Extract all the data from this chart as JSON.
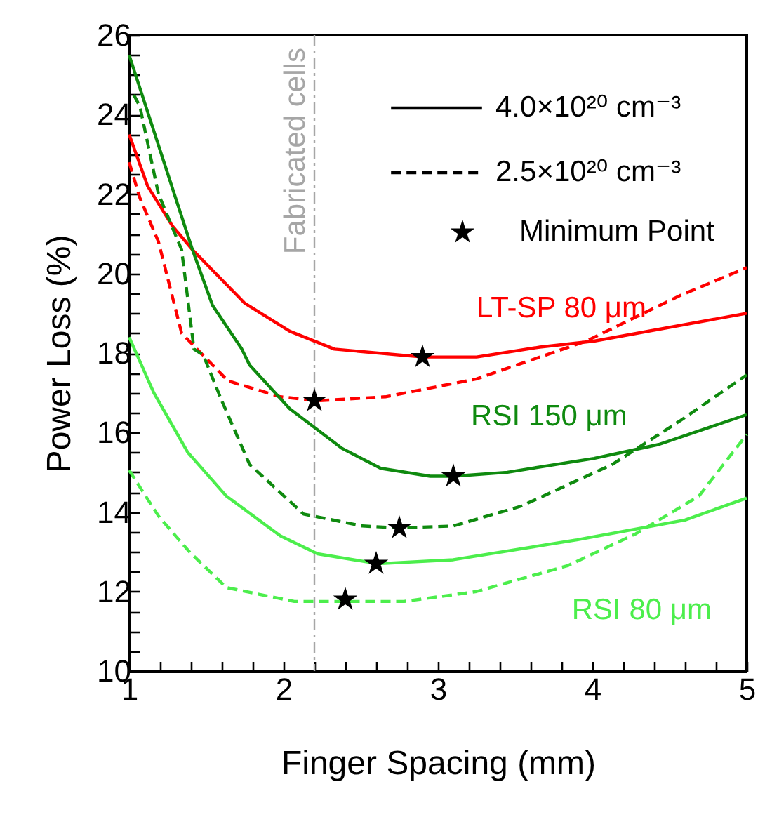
{
  "chart_data": {
    "type": "line",
    "xlabel": "Finger Spacing (mm)",
    "ylabel": "Power Loss (%)",
    "xlim": [
      1,
      5
    ],
    "ylim": [
      10,
      26
    ],
    "xticks": [
      1,
      {
        "value": 1.2,
        "label": null
      },
      {
        "value": 1.4,
        "label": null
      },
      {
        "value": 1.6,
        "label": null
      },
      {
        "value": 1.8,
        "label": null
      },
      2,
      {
        "value": 2.2,
        "label": null
      },
      {
        "value": 2.4,
        "label": null
      },
      {
        "value": 2.6,
        "label": null
      },
      {
        "value": 2.8,
        "label": null
      },
      3,
      {
        "value": 3.2,
        "label": null
      },
      {
        "value": 3.4,
        "label": null
      },
      {
        "value": 3.6,
        "label": null
      },
      {
        "value": 3.8,
        "label": null
      },
      4,
      {
        "value": 4.2,
        "label": null
      },
      {
        "value": 4.4,
        "label": null
      },
      {
        "value": 4.6,
        "label": null
      },
      {
        "value": 4.8,
        "label": null
      },
      5
    ],
    "yticks": [
      10,
      {
        "value": 10.5,
        "label": null
      },
      {
        "value": 11,
        "label": null
      },
      {
        "value": 11.5,
        "label": null
      },
      12,
      {
        "value": 12.5,
        "label": null
      },
      {
        "value": 13,
        "label": null
      },
      {
        "value": 13.5,
        "label": null
      },
      14,
      {
        "value": 14.5,
        "label": null
      },
      {
        "value": 15,
        "label": null
      },
      {
        "value": 15.5,
        "label": null
      },
      16,
      {
        "value": 16.5,
        "label": null
      },
      {
        "value": 17,
        "label": null
      },
      {
        "value": 17.5,
        "label": null
      },
      18,
      {
        "value": 18.5,
        "label": null
      },
      {
        "value": 19,
        "label": null
      },
      {
        "value": 19.5,
        "label": null
      },
      20,
      {
        "value": 20.5,
        "label": null
      },
      {
        "value": 21,
        "label": null
      },
      {
        "value": 21.5,
        "label": null
      },
      22,
      {
        "value": 22.5,
        "label": null
      },
      {
        "value": 23,
        "label": null
      },
      {
        "value": 23.5,
        "label": null
      },
      24,
      {
        "value": 24.5,
        "label": null
      },
      {
        "value": 25,
        "label": null
      },
      {
        "value": 25.5,
        "label": null
      },
      26
    ],
    "grid": false,
    "legend": "top right",
    "series": [
      {
        "color": "#ff0000",
        "line_style": "solid",
        "x": [
          1,
          1.12,
          1.28,
          1.41,
          1.75,
          2.04,
          2.33,
          2.9,
          3.25,
          3.66,
          4.01,
          5
        ],
        "values": [
          23.5,
          22.2,
          21.2,
          20.6,
          19.25,
          18.55,
          18.1,
          17.9,
          17.9,
          18.15,
          18.3,
          19.0
        ]
      },
      {
        "color": "#ff0000",
        "line_style": "dashed",
        "x": [
          1,
          1.07,
          1.19,
          1.34,
          1.64,
          1.98,
          2.22,
          2.66,
          3.25,
          3.96,
          4.57,
          5
        ],
        "values": [
          22.8,
          21.9,
          20.8,
          18.5,
          17.3,
          16.9,
          16.8,
          16.9,
          17.35,
          18.3,
          19.45,
          20.15
        ]
      },
      {
        "color": "#0f8a0f",
        "line_style": "solid",
        "x": [
          1,
          1.41,
          1.54,
          1.73,
          1.78,
          2.04,
          2.38,
          2.63,
          2.95,
          3.1,
          3.45,
          4.01,
          4.43,
          5
        ],
        "values": [
          25.5,
          20.6,
          19.2,
          18.1,
          17.7,
          16.6,
          15.6,
          15.1,
          14.9,
          14.9,
          15.0,
          15.35,
          15.7,
          16.45
        ]
      },
      {
        "color": "#0f8a0f",
        "line_style": "dashed",
        "x": [
          1.03,
          1.07,
          1.19,
          1.34,
          1.42,
          1.48,
          1.6,
          1.78,
          2.13,
          2.51,
          2.75,
          3.1,
          3.54,
          4.13,
          4.57,
          5
        ],
        "values": [
          24.5,
          24.2,
          22.0,
          20.6,
          18.1,
          17.95,
          16.8,
          15.2,
          13.95,
          13.65,
          13.6,
          13.65,
          14.15,
          15.2,
          16.3,
          17.45
        ]
      },
      {
        "color": "#4cee4c",
        "line_style": "solid",
        "x": [
          1,
          1.16,
          1.38,
          1.63,
          1.98,
          2.22,
          2.61,
          3.1,
          3.9,
          4.6,
          5
        ],
        "values": [
          18.4,
          17.0,
          15.5,
          14.4,
          13.4,
          12.95,
          12.7,
          12.8,
          13.3,
          13.8,
          14.35
        ]
      },
      {
        "color": "#4cee4c",
        "line_style": "dashed",
        "x": [
          1,
          1.19,
          1.39,
          1.63,
          2.07,
          2.4,
          2.78,
          3.25,
          3.84,
          4.28,
          4.69,
          5
        ],
        "values": [
          15.05,
          13.9,
          13.0,
          12.1,
          11.75,
          11.75,
          11.75,
          12.0,
          12.65,
          13.45,
          14.4,
          15.95
        ]
      },
      {
        "name": "Minimum Point",
        "type": "scatter",
        "marker": "star",
        "color": "#000000",
        "x": [
          2.9,
          2.2,
          3.1,
          2.75,
          2.6,
          2.4
        ],
        "values": [
          17.9,
          16.8,
          14.9,
          13.6,
          12.7,
          11.8
        ]
      }
    ],
    "ref_lines": [
      {
        "axis": "x",
        "value": 2.2,
        "label": "Fabricated cells",
        "color": "#a6a6a6",
        "line_style": "dashed"
      }
    ],
    "annotations": [
      "4.0×10²⁰ cm⁻³",
      "2.5×10²⁰ cm⁻³",
      "LT-SP 80 μm",
      "RSI 150 μm",
      "RSI 80 μm"
    ]
  }
}
